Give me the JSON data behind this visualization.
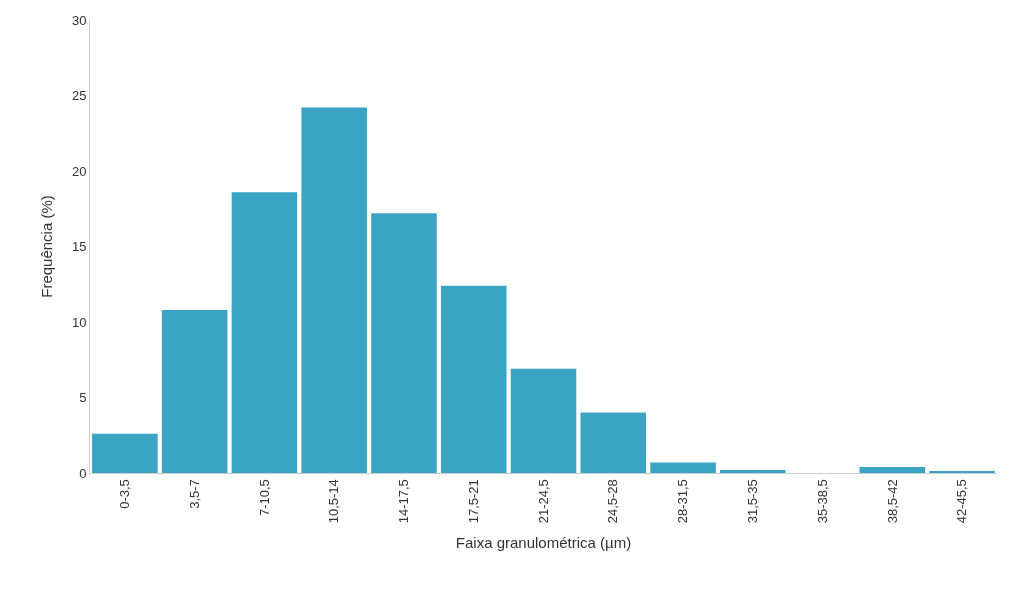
{
  "chart_data": {
    "type": "bar",
    "xlabel": "Faixa granulométrica (µm)",
    "ylabel": "Frequência (%)",
    "categories": [
      "0-3,5",
      "3,5-7",
      "7-10,5",
      "10,5-14",
      "14-17,5",
      "17,5-21",
      "21-24,5",
      "24,5-28",
      "28-31,5",
      "31,5-35",
      "35-38,5",
      "38,5-42",
      "42-45,5"
    ],
    "values": [
      2.6,
      10.8,
      18.6,
      24.2,
      17.2,
      12.4,
      6.9,
      4.0,
      0.7,
      0.2,
      0,
      0.4,
      0.1
    ],
    "color": "#3ba3c3",
    "ylim": [
      0,
      30
    ],
    "yticks": [
      0,
      5,
      10,
      15,
      20,
      25,
      30
    ]
  }
}
